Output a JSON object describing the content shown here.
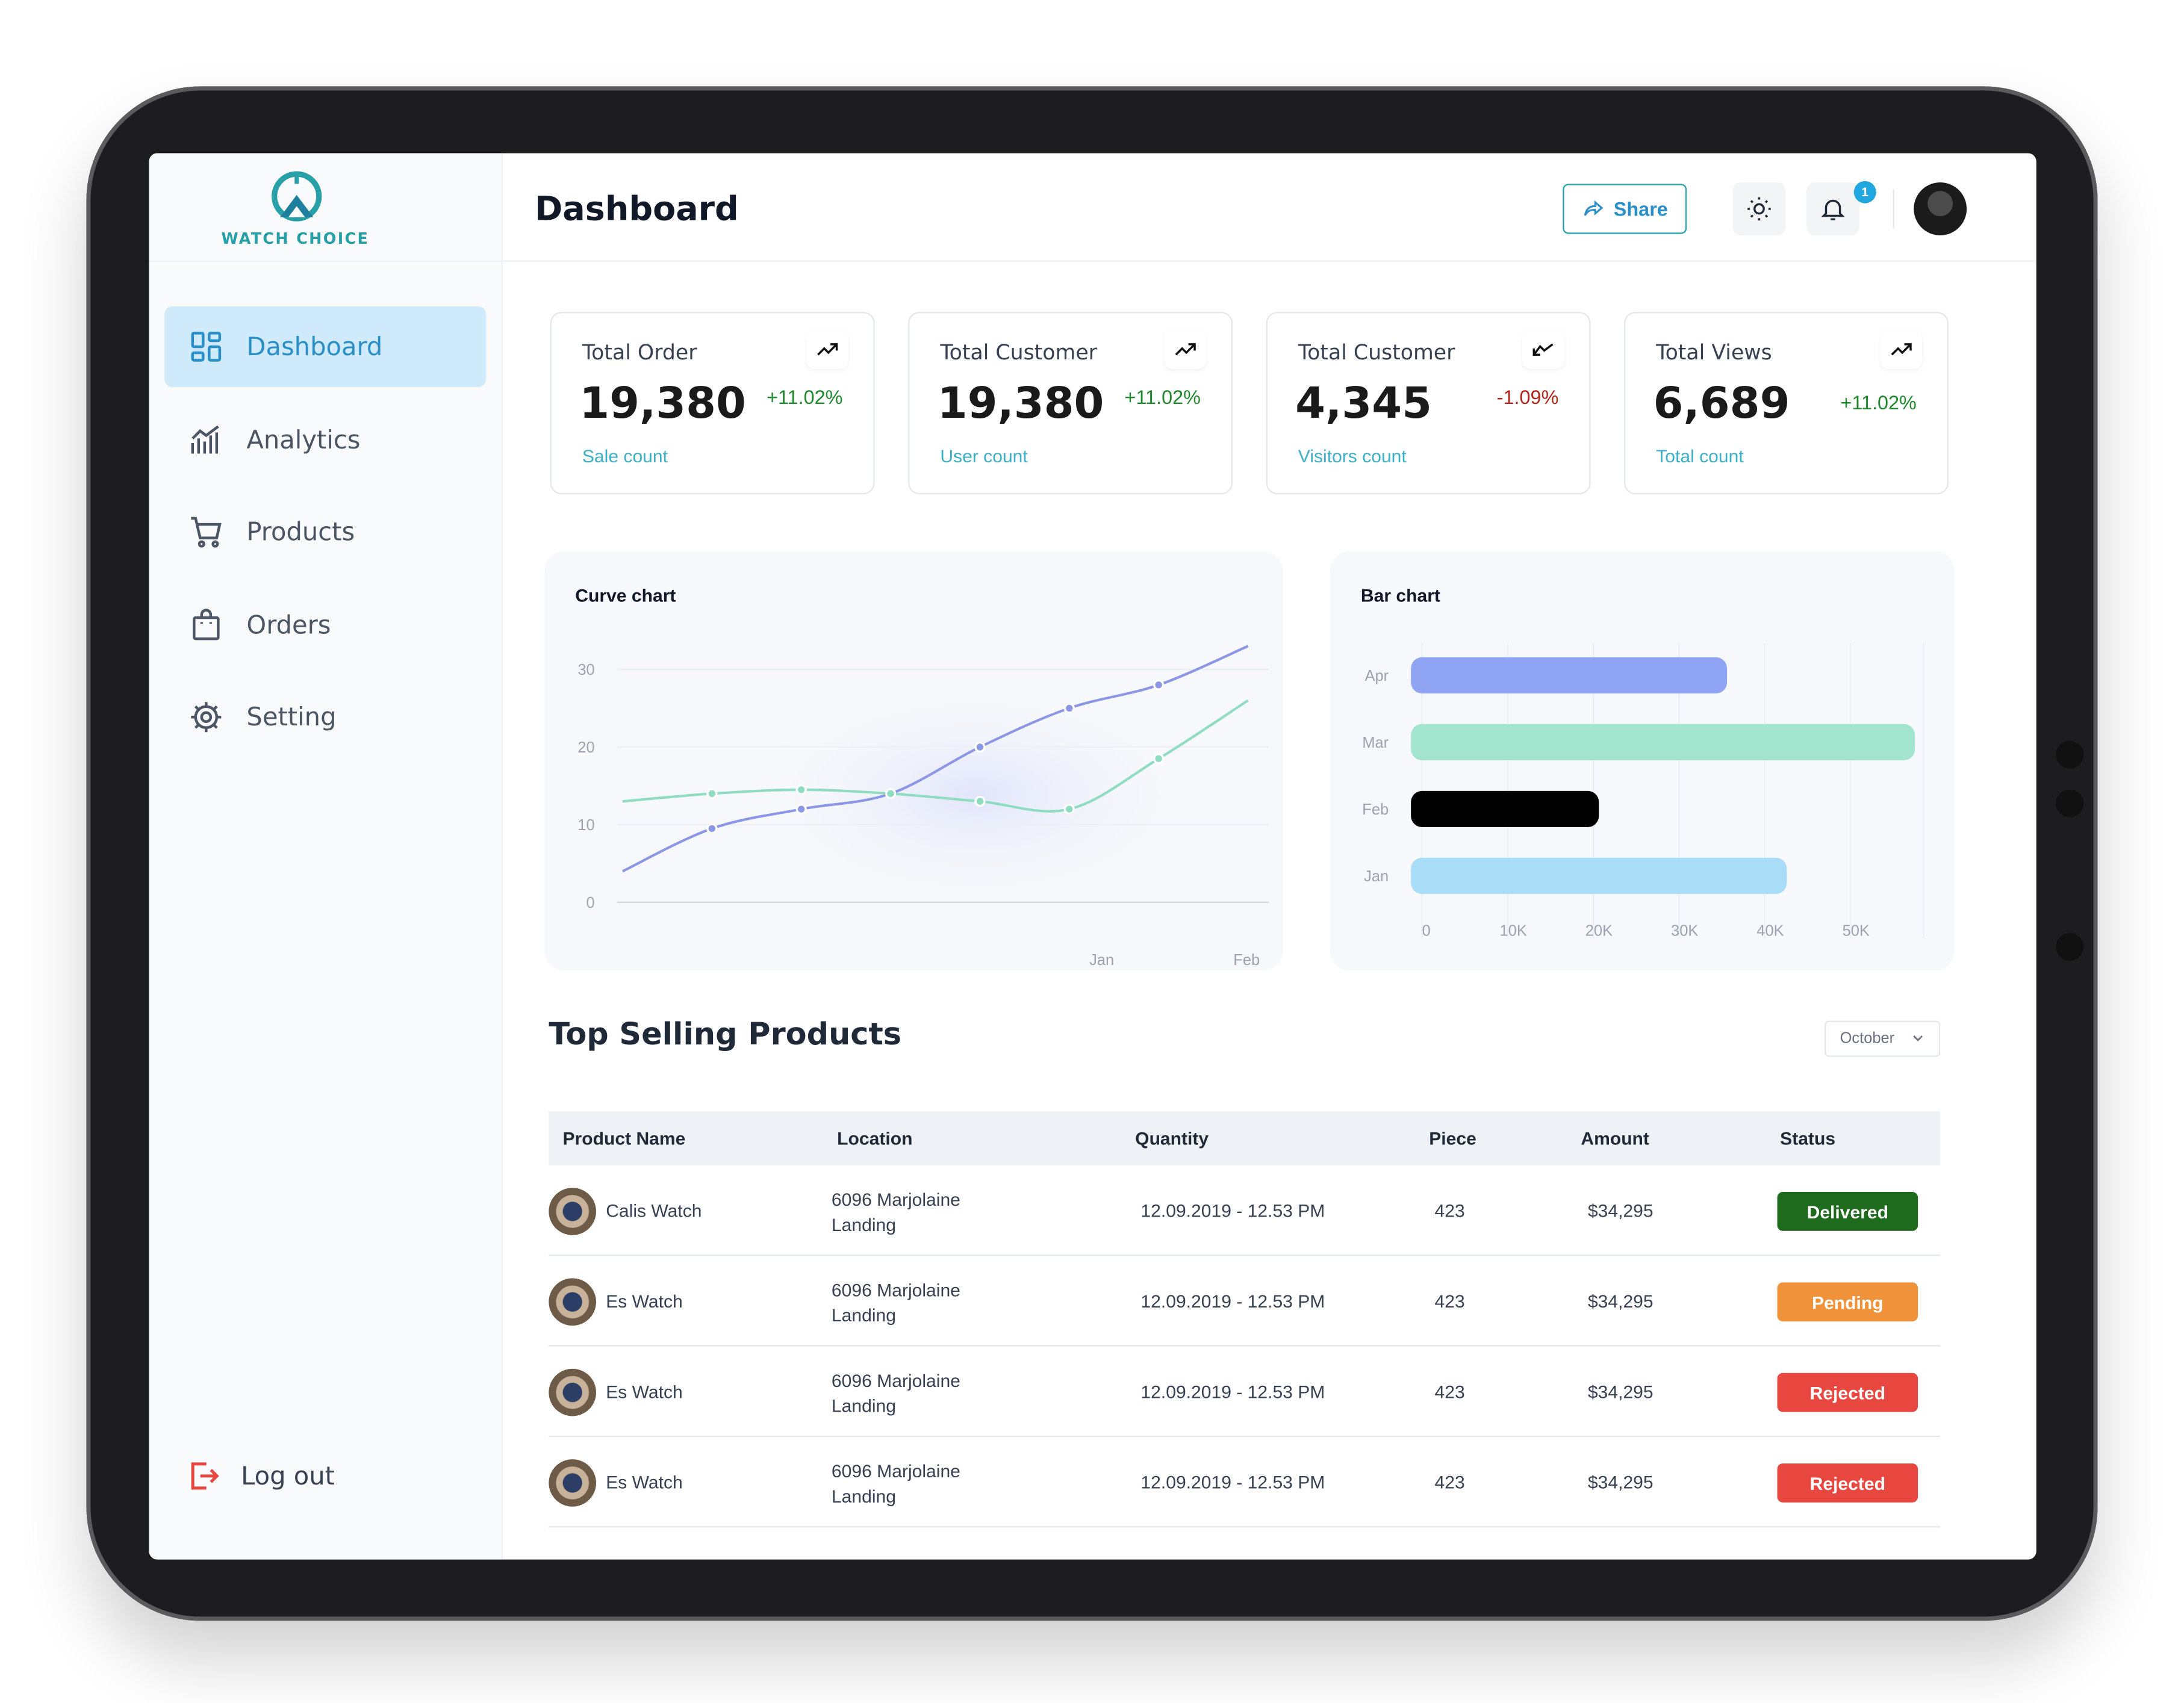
{
  "app": {
    "logo_text": "WATCH CHOICE",
    "page_title": "Dashboard"
  },
  "sidebar": {
    "items": [
      {
        "label": "Dashboard",
        "icon": "dashboard-icon",
        "active": true
      },
      {
        "label": "Analytics",
        "icon": "analytics-icon",
        "active": false
      },
      {
        "label": "Products",
        "icon": "cart-icon",
        "active": false
      },
      {
        "label": "Orders",
        "icon": "bag-icon",
        "active": false
      },
      {
        "label": "Setting",
        "icon": "gear-icon",
        "active": false
      }
    ],
    "logout_label": "Log out"
  },
  "topbar": {
    "share_label": "Share",
    "notification_count": "1"
  },
  "stats": [
    {
      "label": "Total Order",
      "value": "19,380",
      "change": "+11.02%",
      "sub": "Sale count",
      "trend": "up"
    },
    {
      "label": "Total Customer",
      "value": "19,380",
      "change": "+11.02%",
      "sub": "User count",
      "trend": "up"
    },
    {
      "label": "Total Customer",
      "value": "4,345",
      "change": "-1.09%",
      "sub": "Visitors count",
      "trend": "down"
    },
    {
      "label": "Total Views",
      "value": "6,689",
      "change": "+11.02%",
      "sub": "Total count",
      "trend": "up"
    }
  ],
  "colors": {
    "accent": "#2a8ec9",
    "teal": "#27a0a8",
    "delivered": "#1e6b1e",
    "pending": "#f0923a",
    "rejected": "#e8473f",
    "line_purple": "#8b96e6",
    "line_green": "#8fdcc0"
  },
  "chart_data": [
    {
      "type": "line",
      "title": "Curve chart",
      "x_tick_labels": [
        "Jan",
        "Feb"
      ],
      "y_ticks": [
        0,
        10,
        20,
        30
      ],
      "ylim": [
        0,
        33
      ],
      "series": [
        {
          "color": "#8b96e6",
          "values": [
            4,
            9.5,
            12,
            14,
            20,
            25,
            28,
            33
          ]
        },
        {
          "color": "#8fdcc0",
          "values": [
            13,
            14,
            14.5,
            14,
            13,
            12,
            18.5,
            26
          ]
        }
      ],
      "marker_index": [
        1,
        2,
        3,
        4,
        5,
        6
      ]
    },
    {
      "type": "bar",
      "title": "Bar chart",
      "orientation": "horizontal",
      "categories": [
        "Apr",
        "Mar",
        "Feb",
        "Jan"
      ],
      "values": [
        37000,
        59000,
        22000,
        44000
      ],
      "colors": [
        "#8fa4f2",
        "#a3e4cf",
        "#000000",
        "#a9ddf7"
      ],
      "x_ticks": [
        "0",
        "10K",
        "20K",
        "30K",
        "40K",
        "50K"
      ],
      "xlim": [
        0,
        60000
      ]
    }
  ],
  "products": {
    "title": "Top Selling Products",
    "month_filter": "October",
    "columns": [
      "Product Name",
      "Location",
      "Quantity",
      "Piece",
      "Amount",
      "Status"
    ],
    "rows": [
      {
        "name": "Calis Watch",
        "location": "6096 Marjolaine Landing",
        "quantity": "12.09.2019 - 12.53 PM",
        "piece": "423",
        "amount": "$34,295",
        "status": "Delivered"
      },
      {
        "name": "Es Watch",
        "location": "6096 Marjolaine Landing",
        "quantity": "12.09.2019 - 12.53 PM",
        "piece": "423",
        "amount": "$34,295",
        "status": "Pending"
      },
      {
        "name": "Es Watch",
        "location": "6096 Marjolaine Landing",
        "quantity": "12.09.2019 - 12.53 PM",
        "piece": "423",
        "amount": "$34,295",
        "status": "Rejected"
      },
      {
        "name": "Es Watch",
        "location": "6096 Marjolaine Landing",
        "quantity": "12.09.2019 - 12.53 PM",
        "piece": "423",
        "amount": "$34,295",
        "status": "Rejected"
      }
    ]
  }
}
